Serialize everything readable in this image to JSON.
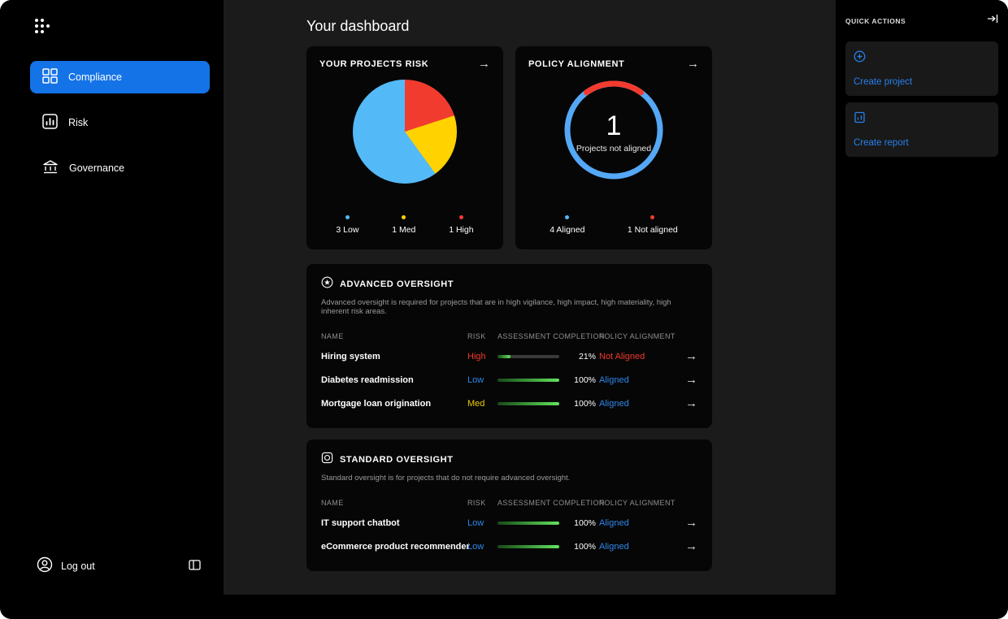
{
  "page_title": "Your dashboard",
  "icons": {
    "arrow_right": "→"
  },
  "colors": {
    "accent_blue": "#1473e6",
    "link_blue": "#2680eb",
    "risk_low_blue": "#2e87ea",
    "risk_med_yellow": "#eec900",
    "risk_high_red": "#f0382c",
    "pie_blue": "#54b9f7",
    "pie_yellow": "#ffd200",
    "pie_red": "#f23b2f",
    "progress_green": "#63e35d"
  },
  "sidebar": {
    "items": [
      {
        "label": "Compliance"
      },
      {
        "label": "Risk"
      },
      {
        "label": "Governance"
      }
    ],
    "logout": "Log out"
  },
  "quick_actions": {
    "title": "QUICK ACTIONS",
    "items": [
      {
        "label": "Create project"
      },
      {
        "label": "Create report"
      }
    ]
  },
  "risk_card": {
    "title": "YOUR PROJECTS RISK",
    "legend": [
      {
        "label": "3 Low"
      },
      {
        "label": "1 Med"
      },
      {
        "label": "1 High"
      }
    ]
  },
  "alignment_card": {
    "title": "POLICY ALIGNMENT",
    "center_value": "1",
    "center_label": "Projects not aligned",
    "legend": [
      {
        "label": "4 Aligned"
      },
      {
        "label": "1 Not aligned"
      }
    ]
  },
  "advanced": {
    "title": "ADVANCED OVERSIGHT",
    "description": "Advanced oversight is required for projects that are in high vigilance, high impact, high materiality, high inherent risk areas.",
    "columns": {
      "name": "NAME",
      "risk": "RISK",
      "completion": "ASSESSMENT COMPLETION",
      "alignment": "POLICY ALIGNMENT"
    },
    "rows": [
      {
        "name": "Hiring system",
        "risk": "High",
        "completion": 21,
        "completion_label": "21%",
        "alignment": "Not Aligned"
      },
      {
        "name": "Diabetes readmission",
        "risk": "Low",
        "completion": 100,
        "completion_label": "100%",
        "alignment": "Aligned"
      },
      {
        "name": "Mortgage loan origination",
        "risk": "Med",
        "completion": 100,
        "completion_label": "100%",
        "alignment": "Aligned"
      }
    ]
  },
  "standard": {
    "title": "STANDARD OVERSIGHT",
    "description": "Standard oversight is for projects that do not require advanced oversight.",
    "columns": {
      "name": "NAME",
      "risk": "RISK",
      "completion": "ASSESSMENT COMPLETION",
      "alignment": "POLICY ALIGNMENT"
    },
    "rows": [
      {
        "name": "IT support chatbot",
        "risk": "Low",
        "completion": 100,
        "completion_label": "100%",
        "alignment": "Aligned"
      },
      {
        "name": "eCommerce product recommender",
        "risk": "Low",
        "completion": 100,
        "completion_label": "100%",
        "alignment": "Aligned"
      }
    ]
  },
  "chart_data": [
    {
      "type": "pie",
      "title": "YOUR PROJECTS RISK",
      "labels": [
        "Low",
        "Med",
        "High"
      ],
      "values": [
        3,
        1,
        1
      ],
      "colors": [
        "#54b9f7",
        "#ffd200",
        "#f23b2f"
      ],
      "legend_position": "bottom"
    },
    {
      "type": "pie",
      "subtype": "donut",
      "title": "POLICY ALIGNMENT",
      "labels": [
        "Aligned",
        "Not aligned"
      ],
      "values": [
        4,
        1
      ],
      "colors": [
        "#54a8f5",
        "#f23b2f"
      ],
      "center_value": "1",
      "center_label": "Projects not aligned",
      "legend_position": "bottom"
    }
  ]
}
